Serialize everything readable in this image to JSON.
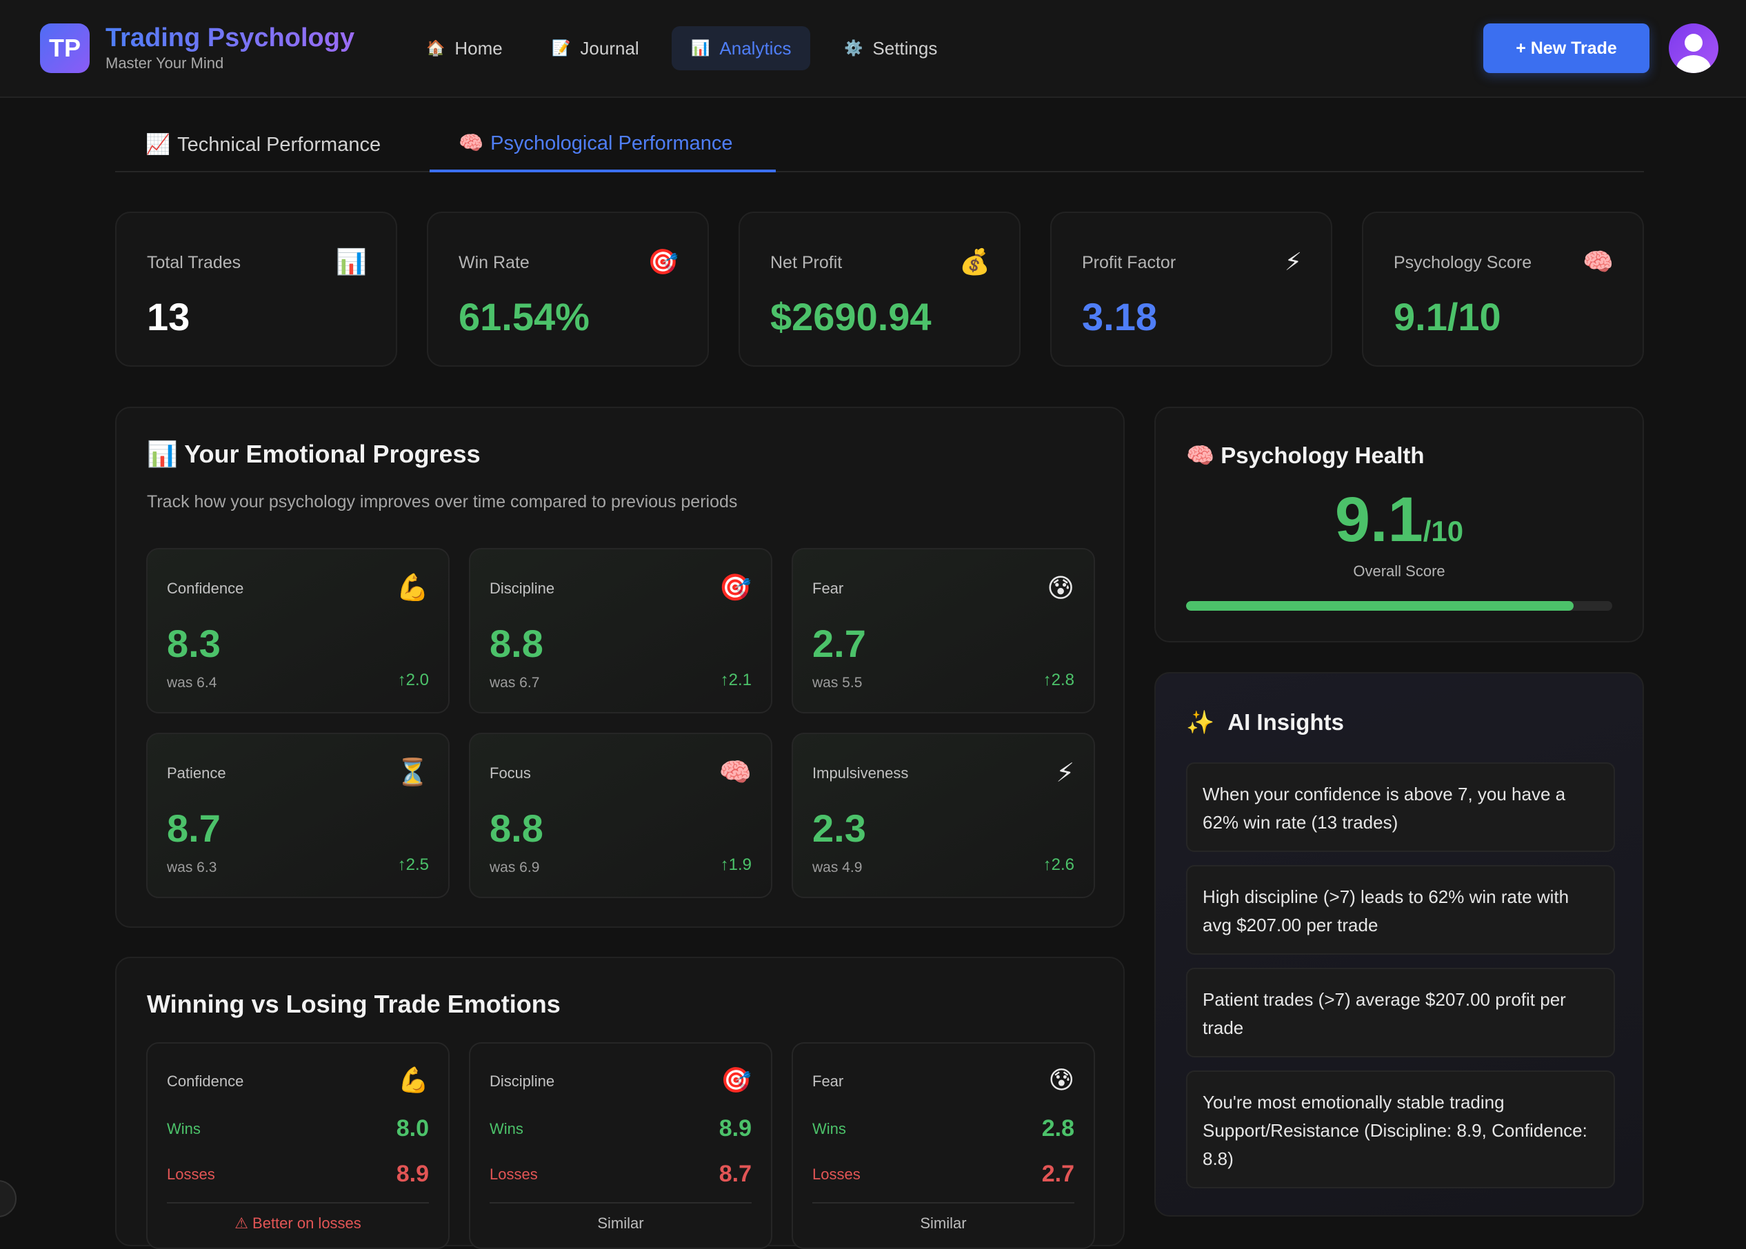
{
  "header": {
    "logo_text": "TP",
    "title": "Trading Psychology",
    "subtitle": "Master Your Mind",
    "nav": [
      {
        "icon": "🏠",
        "label": "Home"
      },
      {
        "icon": "📝",
        "label": "Journal"
      },
      {
        "icon": "📊",
        "label": "Analytics"
      },
      {
        "icon": "⚙️",
        "label": "Settings"
      }
    ],
    "active_nav": "Analytics",
    "new_trade_label": "+ New Trade"
  },
  "tabs": [
    {
      "icon": "📈",
      "label": "Technical Performance"
    },
    {
      "icon": "🧠",
      "label": "Psychological Performance"
    }
  ],
  "active_tab": "Psychological Performance",
  "stats": [
    {
      "label": "Total Trades",
      "icon": "📊",
      "value": "13",
      "color": "#ffffff"
    },
    {
      "label": "Win Rate",
      "icon": "🎯",
      "value": "61.54%",
      "color": "#4cc26a"
    },
    {
      "label": "Net Profit",
      "icon": "💰",
      "value": "$2690.94",
      "color": "#4cc26a"
    },
    {
      "label": "Profit Factor",
      "icon": "⚡",
      "value": "3.18",
      "color": "#4f7ef7"
    },
    {
      "label": "Psychology Score",
      "icon": "🧠",
      "value": "9.1/10",
      "color": "#4cc26a"
    }
  ],
  "emotional_progress": {
    "icon": "📊",
    "title": "Your Emotional Progress",
    "subtitle": "Track how your psychology improves over time compared to previous periods",
    "items": [
      {
        "label": "Confidence",
        "icon": "💪",
        "value": "8.3",
        "was": "was 6.4",
        "delta": "↑2.0"
      },
      {
        "label": "Discipline",
        "icon": "🎯",
        "value": "8.8",
        "was": "was 6.7",
        "delta": "↑2.1"
      },
      {
        "label": "Fear",
        "icon": "😰",
        "value": "2.7",
        "was": "was 5.5",
        "delta": "↑2.8"
      },
      {
        "label": "Patience",
        "icon": "⏳",
        "value": "8.7",
        "was": "was 6.3",
        "delta": "↑2.5"
      },
      {
        "label": "Focus",
        "icon": "🧠",
        "value": "8.8",
        "was": "was 6.9",
        "delta": "↑1.9"
      },
      {
        "label": "Impulsiveness",
        "icon": "⚡",
        "value": "2.3",
        "was": "was 4.9",
        "delta": "↑2.6"
      }
    ]
  },
  "win_loss": {
    "title": "Winning vs Losing Trade Emotions",
    "wins_label": "Wins",
    "losses_label": "Losses",
    "items": [
      {
        "label": "Confidence",
        "icon": "💪",
        "wins": "8.0",
        "losses": "8.9",
        "note": "⚠ Better on losses",
        "warn": true
      },
      {
        "label": "Discipline",
        "icon": "🎯",
        "wins": "8.9",
        "losses": "8.7",
        "note": "Similar",
        "warn": false
      },
      {
        "label": "Fear",
        "icon": "😰",
        "wins": "2.8",
        "losses": "2.7",
        "note": "Similar",
        "warn": false
      }
    ]
  },
  "health": {
    "icon": "🧠",
    "title": "Psychology Health",
    "score": "9.1",
    "out_of": "/10",
    "caption": "Overall Score",
    "progress": 0.91
  },
  "ai_insights": {
    "icon": "✨",
    "title": "AI Insights",
    "items": [
      "When your confidence is above 7, you have a 62% win rate (13 trades)",
      "High discipline (>7) leads to 62% win rate with avg $207.00 per trade",
      "Patient trades (>7) average $207.00 profit per trade",
      "You're most emotionally stable trading Support/Resistance (Discipline: 8.9, Confidence: 8.8)"
    ]
  }
}
